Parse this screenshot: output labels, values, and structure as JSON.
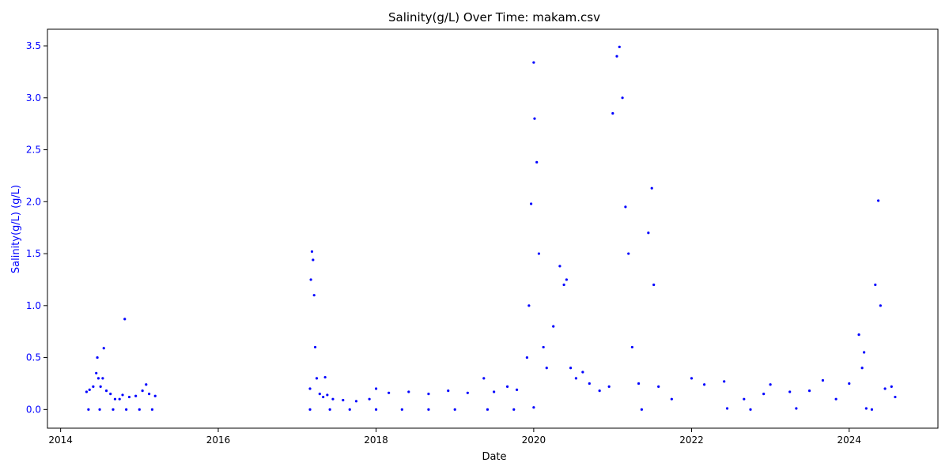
{
  "chart_data": {
    "type": "scatter",
    "title": "Salinity(g/L) Over Time: makam.csv",
    "xlabel": "Date",
    "ylabel": "Salinity(g/L) (g/L)",
    "x_ticks": [
      "2014",
      "2016",
      "2018",
      "2020",
      "2022",
      "2024"
    ],
    "y_ticks": [
      "0.0",
      "0.5",
      "1.0",
      "1.5",
      "2.0",
      "2.5",
      "3.0",
      "3.5"
    ],
    "xlim": [
      "2013-11-01",
      "2025-02-15"
    ],
    "ylim": [
      -0.18,
      3.66
    ],
    "grid": false,
    "legend": "none",
    "colors": {
      "series": "#0000ff",
      "ylabel": "#0000ff",
      "yticks": "#0000ff",
      "axis": "#000000"
    },
    "series": [
      {
        "points": [
          [
            "2014-05-01",
            0.17
          ],
          [
            "2014-05-15",
            0.19
          ],
          [
            "2014-06-01",
            0.22
          ],
          [
            "2014-06-15",
            0.35
          ],
          [
            "2014-06-20",
            0.5
          ],
          [
            "2014-06-25",
            0.3
          ],
          [
            "2014-07-05",
            0.22
          ],
          [
            "2014-07-15",
            0.3
          ],
          [
            "2014-07-20",
            0.59
          ],
          [
            "2014-08-01",
            0.18
          ],
          [
            "2014-08-20",
            0.15
          ],
          [
            "2014-09-10",
            0.1
          ],
          [
            "2014-10-01",
            0.1
          ],
          [
            "2014-10-15",
            0.14
          ],
          [
            "2014-10-25",
            0.87
          ],
          [
            "2014-11-15",
            0.12
          ],
          [
            "2014-12-15",
            0.13
          ],
          [
            "2015-01-15",
            0.18
          ],
          [
            "2015-02-01",
            0.24
          ],
          [
            "2015-02-15",
            0.15
          ],
          [
            "2015-03-15",
            0.13
          ],
          [
            "2014-05-10",
            0.0
          ],
          [
            "2014-07-01",
            0.0
          ],
          [
            "2014-09-01",
            0.0
          ],
          [
            "2014-11-01",
            0.0
          ],
          [
            "2015-01-01",
            0.0
          ],
          [
            "2015-03-01",
            0.0
          ],
          [
            "2017-03-01",
            0.2
          ],
          [
            "2017-03-05",
            1.25
          ],
          [
            "2017-03-10",
            1.52
          ],
          [
            "2017-03-15",
            1.44
          ],
          [
            "2017-03-20",
            1.1
          ],
          [
            "2017-03-25",
            0.6
          ],
          [
            "2017-04-01",
            0.3
          ],
          [
            "2017-04-15",
            0.15
          ],
          [
            "2017-05-01",
            0.12
          ],
          [
            "2017-05-10",
            0.31
          ],
          [
            "2017-05-20",
            0.14
          ],
          [
            "2017-06-15",
            0.1
          ],
          [
            "2017-08-01",
            0.09
          ],
          [
            "2017-10-01",
            0.08
          ],
          [
            "2017-12-01",
            0.1
          ],
          [
            "2018-01-01",
            0.2
          ],
          [
            "2018-03-01",
            0.16
          ],
          [
            "2018-06-01",
            0.17
          ],
          [
            "2018-09-01",
            0.15
          ],
          [
            "2018-12-01",
            0.18
          ],
          [
            "2019-03-01",
            0.16
          ],
          [
            "2019-05-15",
            0.3
          ],
          [
            "2019-07-01",
            0.17
          ],
          [
            "2019-09-01",
            0.22
          ],
          [
            "2019-10-15",
            0.19
          ],
          [
            "2017-03-01",
            0.0
          ],
          [
            "2017-06-01",
            0.0
          ],
          [
            "2017-09-01",
            0.0
          ],
          [
            "2018-01-01",
            0.0
          ],
          [
            "2018-05-01",
            0.0
          ],
          [
            "2018-09-01",
            0.0
          ],
          [
            "2019-01-01",
            0.0
          ],
          [
            "2019-06-01",
            0.0
          ],
          [
            "2019-10-01",
            0.0
          ],
          [
            "2020-01-01",
            0.02
          ],
          [
            "2019-12-01",
            0.5
          ],
          [
            "2019-12-10",
            1.0
          ],
          [
            "2019-12-20",
            1.98
          ],
          [
            "2020-01-01",
            3.34
          ],
          [
            "2020-01-05",
            2.8
          ],
          [
            "2020-01-15",
            2.38
          ],
          [
            "2020-01-25",
            1.5
          ],
          [
            "2020-02-15",
            0.6
          ],
          [
            "2020-03-01",
            0.4
          ],
          [
            "2020-04-01",
            0.8
          ],
          [
            "2020-05-01",
            1.38
          ],
          [
            "2020-05-20",
            1.2
          ],
          [
            "2020-06-01",
            1.25
          ],
          [
            "2020-06-20",
            0.4
          ],
          [
            "2020-07-15",
            0.3
          ],
          [
            "2020-08-15",
            0.36
          ],
          [
            "2020-09-15",
            0.25
          ],
          [
            "2020-11-01",
            0.18
          ],
          [
            "2020-12-15",
            0.22
          ],
          [
            "2021-01-01",
            2.85
          ],
          [
            "2021-01-20",
            3.4
          ],
          [
            "2021-02-01",
            3.49
          ],
          [
            "2021-02-15",
            3.0
          ],
          [
            "2021-03-01",
            1.95
          ],
          [
            "2021-03-15",
            1.5
          ],
          [
            "2021-04-01",
            0.6
          ],
          [
            "2021-05-01",
            0.25
          ],
          [
            "2021-06-15",
            1.7
          ],
          [
            "2021-07-01",
            2.13
          ],
          [
            "2021-07-10",
            1.2
          ],
          [
            "2021-08-01",
            0.22
          ],
          [
            "2021-10-01",
            0.1
          ],
          [
            "2021-05-15",
            0.0
          ],
          [
            "2022-01-01",
            0.3
          ],
          [
            "2022-03-01",
            0.24
          ],
          [
            "2022-06-01",
            0.27
          ],
          [
            "2022-06-15",
            0.01
          ],
          [
            "2022-09-01",
            0.1
          ],
          [
            "2022-10-01",
            0.0
          ],
          [
            "2022-12-01",
            0.15
          ],
          [
            "2023-01-01",
            0.24
          ],
          [
            "2023-04-01",
            0.17
          ],
          [
            "2023-05-01",
            0.01
          ],
          [
            "2023-07-01",
            0.18
          ],
          [
            "2023-09-01",
            0.28
          ],
          [
            "2023-11-01",
            0.1
          ],
          [
            "2024-01-01",
            0.25
          ],
          [
            "2024-02-15",
            0.72
          ],
          [
            "2024-03-01",
            0.4
          ],
          [
            "2024-03-10",
            0.55
          ],
          [
            "2024-03-20",
            0.01
          ],
          [
            "2024-04-15",
            0.0
          ],
          [
            "2024-05-01",
            1.2
          ],
          [
            "2024-05-15",
            2.01
          ],
          [
            "2024-05-25",
            1.0
          ],
          [
            "2024-06-15",
            0.2
          ],
          [
            "2024-07-15",
            0.22
          ],
          [
            "2024-08-01",
            0.12
          ]
        ]
      }
    ]
  }
}
